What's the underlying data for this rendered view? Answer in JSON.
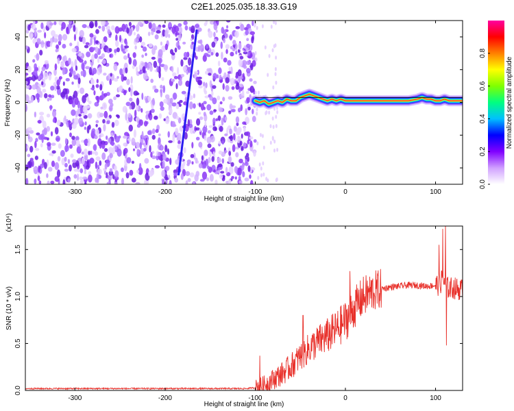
{
  "title": "C2E1.2025.035.18.33.G19",
  "chart_data": [
    {
      "type": "heatmap",
      "xlabel": "Height of straight line (km)",
      "ylabel": "Frequency (Hz)",
      "xlim": [
        -355,
        130
      ],
      "ylim": [
        -50,
        50
      ],
      "xticks": [
        -300,
        -200,
        -100,
        0,
        100
      ],
      "yticks": [
        -40,
        -20,
        0,
        20,
        40
      ],
      "colorbar": {
        "label": "Normalized spectral amplitude",
        "range": [
          0,
          1
        ],
        "ticks": [
          "0.0",
          "0.2",
          "0.4",
          "0.6",
          "0.8"
        ],
        "tick_values": [
          0.0,
          0.2,
          0.4,
          0.6,
          0.8
        ],
        "colors": [
          "#ffffff",
          "#d0a0ff",
          "#8000ff",
          "#0000ff",
          "#00c0ff",
          "#00ff80",
          "#80ff00",
          "#ffff00",
          "#ff8000",
          "#ff0000",
          "#ff00a0"
        ]
      },
      "noise_region_x": [
        -355,
        -100
      ],
      "streak": {
        "x": [
          -185,
          -165
        ],
        "y": [
          -44,
          44
        ]
      },
      "signal_ridge": {
        "x": [
          -100,
          -95,
          -90,
          -85,
          -80,
          -75,
          -70,
          -65,
          -60,
          -55,
          -50,
          -45,
          -40,
          -35,
          -30,
          -25,
          -20,
          -15,
          -10,
          -5,
          0,
          10,
          20,
          30,
          40,
          50,
          60,
          70,
          80,
          85,
          90,
          95,
          100,
          105,
          110,
          115,
          120,
          130
        ],
        "y": [
          1,
          0,
          1,
          -1,
          0,
          1,
          0,
          2,
          1,
          1,
          3,
          4,
          5,
          4,
          3,
          2,
          1,
          2,
          1,
          2,
          1,
          1,
          1,
          1,
          1,
          1,
          1,
          1,
          2,
          3,
          2,
          2,
          1,
          1,
          2,
          1,
          1,
          1
        ]
      }
    },
    {
      "type": "line",
      "xlabel": "Height of straight line (km)",
      "ylabel": "SNR (10 * v/v)",
      "y_scale_note": "(x10⁴)",
      "xlim": [
        -355,
        130
      ],
      "ylim": [
        0,
        1.75
      ],
      "xticks": [
        -300,
        -200,
        -100,
        0,
        100
      ],
      "yticks": [
        0.0,
        0.5,
        1.0,
        1.5
      ],
      "ytick_labels": [
        "0.0",
        "0.5",
        "1.0",
        "1.5"
      ],
      "color": "#e8302a",
      "series": [
        {
          "x": [
            -355,
            -300,
            -250,
            -200,
            -150,
            -110,
            -100,
            -90,
            -80,
            -70,
            -60,
            -50,
            -40,
            -30,
            -20,
            -10,
            0,
            10,
            20,
            30,
            40,
            50,
            60,
            70,
            80,
            90,
            100,
            105,
            108,
            110,
            112,
            115,
            120,
            130
          ],
          "values": [
            0.02,
            0.02,
            0.02,
            0.02,
            0.02,
            0.02,
            0.03,
            0.06,
            0.12,
            0.18,
            0.26,
            0.36,
            0.45,
            0.52,
            0.58,
            0.65,
            0.74,
            0.88,
            1.0,
            1.05,
            1.08,
            1.1,
            1.11,
            1.12,
            1.12,
            1.11,
            1.12,
            1.13,
            1.2,
            1.15,
            1.1,
            1.09,
            1.09,
            1.07
          ]
        }
      ],
      "peaks": [
        {
          "x": -95,
          "y": 0.37
        },
        {
          "x": -47,
          "y": 0.8
        },
        {
          "x": 5,
          "y": 1.27
        },
        {
          "x": 108,
          "y": 1.72
        },
        {
          "x": 111,
          "y": 1.75
        },
        {
          "x": 112,
          "y": 0.48
        },
        {
          "x": 104,
          "y": 1.55
        }
      ]
    }
  ]
}
